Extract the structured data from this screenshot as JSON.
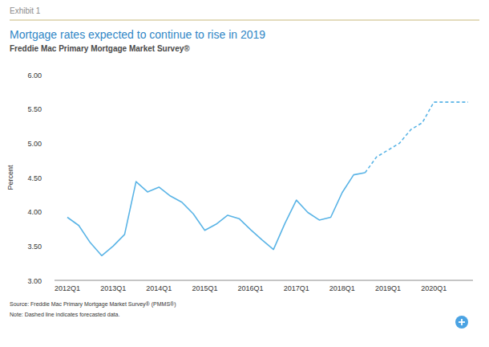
{
  "chart_data": {
    "type": "line",
    "header": "Exhibit 1",
    "title": "Mortgage rates expected to continue to rise in 2019",
    "subtitle": "Freddie Mac Primary Mortgage Market Survey®",
    "y_label": "Percent",
    "source": "Source: Freddie Mac Primary Mortgage Market Survey® (PMMS®)",
    "note": "Note: Dashed line indicates forecasted data.",
    "categories": [
      "2012Q1",
      null,
      null,
      null,
      "2013Q1",
      null,
      null,
      null,
      "2014Q1",
      null,
      null,
      null,
      "2015Q1",
      null,
      null,
      null,
      "2016Q1",
      null,
      null,
      null,
      "2017Q1",
      null,
      null,
      null,
      "2018Q1",
      null,
      null,
      null,
      "2019Q1",
      null,
      null,
      null,
      "2020Q1",
      null,
      null,
      null
    ],
    "series": [
      {
        "color": "#5ab4e6",
        "line_style": "solid",
        "values": [
          3.92,
          3.8,
          3.55,
          3.36,
          3.5,
          3.67,
          4.44,
          4.29,
          4.36,
          4.23,
          4.14,
          3.97,
          3.73,
          3.82,
          3.95,
          3.9,
          3.74,
          3.59,
          3.45,
          3.83,
          4.17,
          3.99,
          3.88,
          3.92,
          4.28,
          4.54,
          4.57,
          null,
          null,
          null,
          null,
          null,
          null,
          null,
          null,
          null
        ]
      },
      {
        "color": "#5ab4e6",
        "line_style": "dashed",
        "values": [
          null,
          null,
          null,
          null,
          null,
          null,
          null,
          null,
          null,
          null,
          null,
          null,
          null,
          null,
          null,
          null,
          null,
          null,
          null,
          null,
          null,
          null,
          null,
          null,
          null,
          null,
          4.57,
          4.8,
          4.9,
          5.0,
          5.2,
          5.3,
          5.6,
          5.6,
          5.6,
          5.6
        ]
      }
    ],
    "ylim": [
      3,
      6
    ],
    "yticks": [
      {
        "value": 3,
        "label": "3.00"
      },
      {
        "value": 3.5,
        "label": "3.50"
      },
      {
        "value": 4,
        "label": "4.00"
      },
      {
        "value": 4.5,
        "label": "4.50"
      },
      {
        "value": 5,
        "label": "5.00"
      },
      {
        "value": 5.5,
        "label": "5.50"
      },
      {
        "value": 6,
        "label": "6.00"
      }
    ],
    "grid": false
  }
}
